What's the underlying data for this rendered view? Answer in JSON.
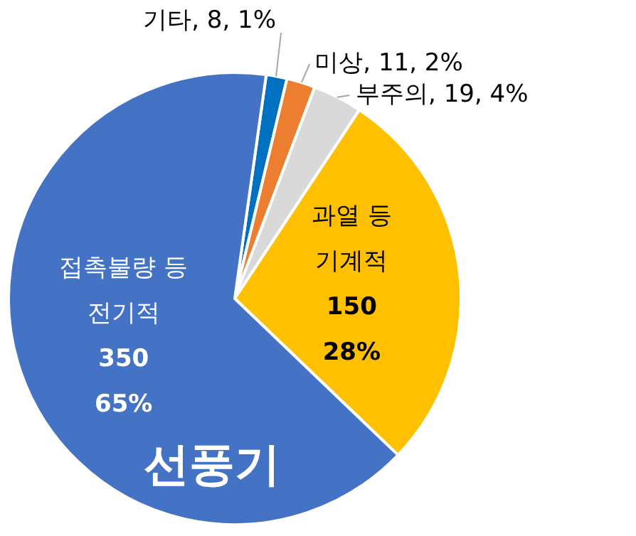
{
  "chart_data": {
    "type": "pie",
    "title": "선풍기",
    "categories": [
      "기타",
      "미상",
      "부주의",
      "기계적",
      "전기적"
    ],
    "values": [
      8,
      11,
      19,
      150,
      350
    ],
    "colors": [
      "#0070c0",
      "#ed7d31",
      "#d9d9d9",
      "#ffc000",
      "#4472c4"
    ],
    "value_labels": [
      "8, 1%",
      "11, 2%",
      "19, 4%",
      "150\n28%",
      "350\n65%"
    ],
    "annotations": [
      {
        "text": "과열 등",
        "x": "기계적"
      },
      {
        "text": "접촉불량 등",
        "x": "전기적"
      }
    ],
    "legend": false
  }
}
